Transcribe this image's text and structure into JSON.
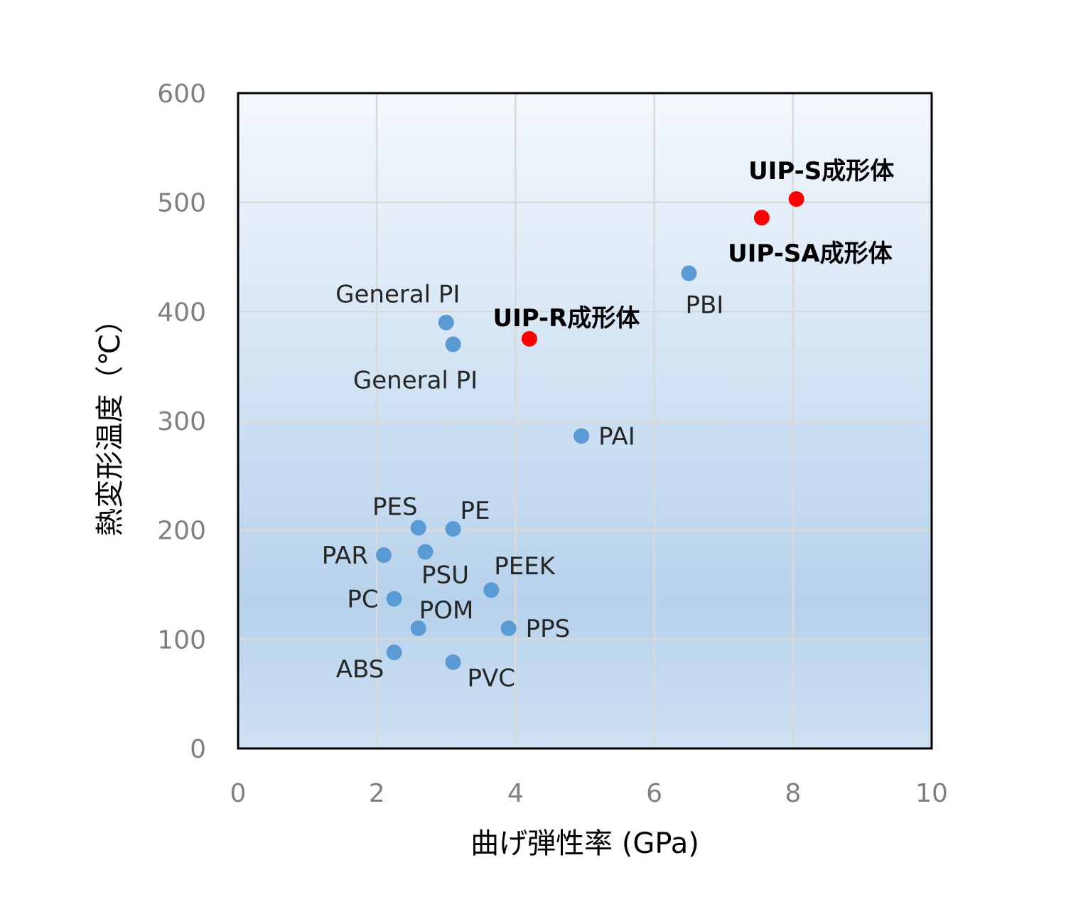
{
  "chart_data": {
    "type": "scatter",
    "xlabel": "曲げ弾性率 (GPa)",
    "ylabel": "熱変形温度（℃）",
    "xlim": [
      0,
      10
    ],
    "ylim": [
      0,
      600
    ],
    "xticks": [
      0,
      2,
      4,
      6,
      8,
      10
    ],
    "yticks": [
      0,
      100,
      200,
      300,
      400,
      500,
      600
    ],
    "grid": true,
    "background": "gradient-light-blue",
    "colors": {
      "standard": "#5b9bd5",
      "highlight": "#ff0000",
      "plot_border": "#000000",
      "grid": "#d9d9d9",
      "tick_text": "#7f7f7f",
      "bg_top": "#f3f8fd",
      "bg_bottom": "#b7d2ec"
    },
    "points": [
      {
        "label": "General PI",
        "x": 3.0,
        "y": 390,
        "group": "standard",
        "label_pos": "above-left"
      },
      {
        "label": "General PI",
        "x": 3.1,
        "y": 370,
        "group": "standard",
        "label_pos": "below-left"
      },
      {
        "label": "UIP-R成形体",
        "x": 4.2,
        "y": 375,
        "group": "highlight",
        "label_pos": "above"
      },
      {
        "label": "PBI",
        "x": 6.5,
        "y": 435,
        "group": "standard",
        "label_pos": "below"
      },
      {
        "label": "UIP-S成形体",
        "x": 8.05,
        "y": 503,
        "group": "highlight",
        "label_pos": "above"
      },
      {
        "label": "UIP-SA成形体",
        "x": 7.55,
        "y": 486,
        "group": "highlight",
        "label_pos": "below"
      },
      {
        "label": "PAI",
        "x": 4.95,
        "y": 286,
        "group": "standard",
        "label_pos": "right"
      },
      {
        "label": "PES",
        "x": 2.6,
        "y": 202,
        "group": "standard",
        "label_pos": "above-left"
      },
      {
        "label": "PE",
        "x": 3.1,
        "y": 201,
        "group": "standard",
        "label_pos": "above-right"
      },
      {
        "label": "PAR",
        "x": 2.1,
        "y": 177,
        "group": "standard",
        "label_pos": "left"
      },
      {
        "label": "PSU",
        "x": 2.7,
        "y": 180,
        "group": "standard",
        "label_pos": "below"
      },
      {
        "label": "PEEK",
        "x": 3.65,
        "y": 145,
        "group": "standard",
        "label_pos": "above-right"
      },
      {
        "label": "PC",
        "x": 2.25,
        "y": 137,
        "group": "standard",
        "label_pos": "left"
      },
      {
        "label": "POM",
        "x": 2.6,
        "y": 110,
        "group": "standard",
        "label_pos": "above-right"
      },
      {
        "label": "PPS",
        "x": 3.9,
        "y": 110,
        "group": "standard",
        "label_pos": "right"
      },
      {
        "label": "ABS",
        "x": 2.25,
        "y": 88,
        "group": "standard",
        "label_pos": "below-left"
      },
      {
        "label": "PVC",
        "x": 3.1,
        "y": 79,
        "group": "standard",
        "label_pos": "below-right"
      }
    ]
  }
}
